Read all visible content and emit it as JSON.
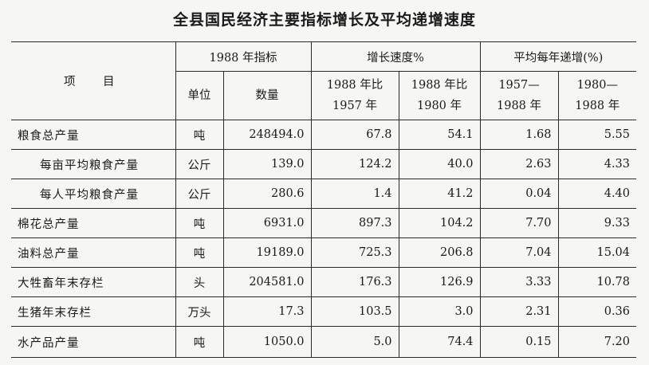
{
  "title": "全县国民经济主要指标增长及平均递增速度",
  "header": {
    "item": "项　目",
    "group_1988": "1988 年指标",
    "group_growth": "增长速度%",
    "group_avg": "平均每年递增(%)",
    "unit": "单位",
    "quantity": "数量",
    "growth_vs_1957_line1": "1988 年比",
    "growth_vs_1957_line2": "1957 年",
    "growth_vs_1980_line1": "1988 年比",
    "growth_vs_1980_line2": "1980 年",
    "avg_1957_line1": "1957—",
    "avg_1957_line2": "1988 年",
    "avg_1980_line1": "1980—",
    "avg_1980_line2": "1988 年"
  },
  "rows": [
    {
      "item": "粮食总产量",
      "unit": "吨",
      "quantity": "248494.0",
      "vs1957": "67.8",
      "vs1980": "54.1",
      "avg1957": "1.68",
      "avg1980": "5.55"
    },
    {
      "item": "每亩平均粮食产量",
      "unit": "公斤",
      "quantity": "139.0",
      "vs1957": "124.2",
      "vs1980": "40.0",
      "avg1957": "2.63",
      "avg1980": "4.33"
    },
    {
      "item": "每人平均粮食产量",
      "unit": "公斤",
      "quantity": "280.6",
      "vs1957": "1.4",
      "vs1980": "41.2",
      "avg1957": "0.04",
      "avg1980": "4.40"
    },
    {
      "item": "棉花总产量",
      "unit": "吨",
      "quantity": "6931.0",
      "vs1957": "897.3",
      "vs1980": "104.2",
      "avg1957": "7.70",
      "avg1980": "9.33"
    },
    {
      "item": "油料总产量",
      "unit": "吨",
      "quantity": "19189.0",
      "vs1957": "725.3",
      "vs1980": "206.8",
      "avg1957": "7.04",
      "avg1980": "15.04"
    },
    {
      "item": "大牲畜年末存栏",
      "unit": "头",
      "quantity": "204581.0",
      "vs1957": "176.3",
      "vs1980": "126.9",
      "avg1957": "3.33",
      "avg1980": "10.78"
    },
    {
      "item": "生猪年末存栏",
      "unit": "万头",
      "quantity": "17.3",
      "vs1957": "103.5",
      "vs1980": "3.0",
      "avg1957": "2.31",
      "avg1980": "0.36"
    },
    {
      "item": "水产品产量",
      "unit": "吨",
      "quantity": "1050.0",
      "vs1957": "5.0",
      "vs1980": "74.4",
      "avg1957": "0.15",
      "avg1980": "7.20"
    }
  ]
}
